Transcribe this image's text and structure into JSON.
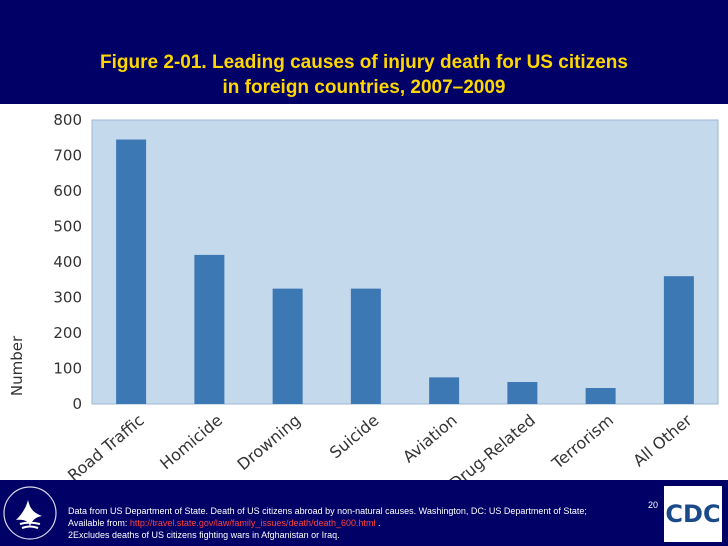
{
  "header": {
    "title_line1": "Figure 2-01. Leading causes of injury death for US citizens",
    "title_line2": "in foreign countries, 2007–2009"
  },
  "chart_data": {
    "type": "bar",
    "categories": [
      "Road Traffic",
      "Homicide",
      "Drowning",
      "Suicide",
      "Aviation",
      "Drug-Related",
      "Terrorism",
      "All Other"
    ],
    "values": [
      745,
      420,
      325,
      325,
      75,
      62,
      45,
      360
    ],
    "ylabel": "Number",
    "xlabel": "",
    "ylim": [
      0,
      800
    ],
    "yticks": [
      0,
      100,
      200,
      300,
      400,
      500,
      600,
      700,
      800
    ],
    "bar_color": "#3c78b4",
    "plot_background": "#c5d9ed"
  },
  "footer": {
    "note_line1": "Data from US Department of State. Death of US citizens abroad by non-natural causes. Washington, DC: US Department of State;",
    "note_line1_tail": "20",
    "note_line2_prefix": "Available from: ",
    "note_line2_link": "http://travel.state.gov/law/family_issues/death/death_600.html",
    "note_line2_suffix": " .",
    "note_line3": "2Excludes deaths of US citizens fighting wars in Afghanistan or Iraq.",
    "cdc_logo_text": "CDC"
  },
  "colors": {
    "header_bg": "#000066",
    "title_color": "#ffd700",
    "link_color": "#ff4040"
  }
}
